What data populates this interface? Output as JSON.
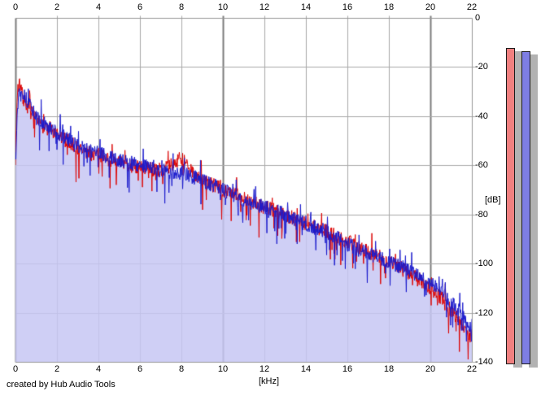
{
  "footer": {
    "credit": "created by Hub Audio Tools"
  },
  "chart_data": {
    "type": "line",
    "title": "",
    "xlabel": "[kHz]",
    "ylabel": "[dB]",
    "xlim": [
      0,
      22
    ],
    "ylim": [
      -140,
      0
    ],
    "x_ticks": [
      0,
      2,
      4,
      6,
      8,
      10,
      12,
      14,
      16,
      18,
      20,
      22
    ],
    "y_ticks": [
      0,
      -20,
      -40,
      -60,
      -80,
      -100,
      -120,
      -140
    ],
    "grid": true,
    "emphasized_x_gridlines": [
      10,
      20
    ],
    "legend": "none",
    "noise_band_db": 6,
    "downward_spike_db": 13,
    "series": [
      {
        "name": "spectrum-left-channel",
        "color": "#dd0505",
        "fill": "none",
        "envelope": [
          [
            0,
            -57
          ],
          [
            0.1,
            -29
          ],
          [
            0.2,
            -27
          ],
          [
            0.35,
            -32
          ],
          [
            0.5,
            -35
          ],
          [
            0.8,
            -39
          ],
          [
            1,
            -42
          ],
          [
            1.5,
            -45
          ],
          [
            2,
            -48
          ],
          [
            2.5,
            -50
          ],
          [
            3,
            -53
          ],
          [
            3.5,
            -55
          ],
          [
            4,
            -56
          ],
          [
            5,
            -59
          ],
          [
            6,
            -61
          ],
          [
            7,
            -62
          ],
          [
            7.7,
            -59
          ],
          [
            8,
            -57
          ],
          [
            8.4,
            -62
          ],
          [
            9,
            -66
          ],
          [
            10,
            -70
          ],
          [
            11,
            -73
          ],
          [
            12,
            -77
          ],
          [
            13,
            -80
          ],
          [
            14,
            -84
          ],
          [
            15,
            -87
          ],
          [
            16,
            -91
          ],
          [
            17,
            -95
          ],
          [
            18,
            -99
          ],
          [
            19,
            -104
          ],
          [
            20,
            -110
          ],
          [
            20.5,
            -114
          ],
          [
            21,
            -119
          ],
          [
            21.5,
            -124
          ],
          [
            22,
            -130
          ]
        ]
      },
      {
        "name": "spectrum-right-channel",
        "color": "#1b1bcd",
        "fill": "rgba(199,199,243,0.85)",
        "envelope": [
          [
            0,
            -55
          ],
          [
            0.15,
            -30
          ],
          [
            0.3,
            -29
          ],
          [
            0.5,
            -33
          ],
          [
            0.8,
            -37
          ],
          [
            1,
            -40
          ],
          [
            1.5,
            -44
          ],
          [
            2,
            -47
          ],
          [
            2.5,
            -49
          ],
          [
            3,
            -52
          ],
          [
            3.5,
            -54
          ],
          [
            4,
            -55
          ],
          [
            5,
            -58
          ],
          [
            6,
            -60
          ],
          [
            7,
            -62
          ],
          [
            8,
            -63
          ],
          [
            9,
            -66
          ],
          [
            10,
            -70
          ],
          [
            11,
            -74
          ],
          [
            12,
            -77
          ],
          [
            13,
            -80
          ],
          [
            14,
            -84
          ],
          [
            15,
            -87
          ],
          [
            16,
            -92
          ],
          [
            17,
            -96
          ],
          [
            18,
            -99
          ],
          [
            19,
            -103
          ],
          [
            20,
            -108
          ],
          [
            20.5,
            -111
          ],
          [
            21,
            -116
          ],
          [
            21.5,
            -120
          ],
          [
            22,
            -127
          ]
        ]
      }
    ],
    "meters": [
      {
        "name": "level-meter-left",
        "color": "#f08080",
        "value_db": -12.3
      },
      {
        "name": "level-meter-right",
        "color": "#7e7ee4",
        "value_db": -13.5
      }
    ],
    "colors": {
      "grid_light": "#a9a9a9",
      "grid_dark": "#7d7d7d",
      "plot_border": "#999999",
      "area_fill": "#c7c7f3",
      "meter_shadow": "#b2b2b2",
      "background": "#ffffff"
    }
  }
}
